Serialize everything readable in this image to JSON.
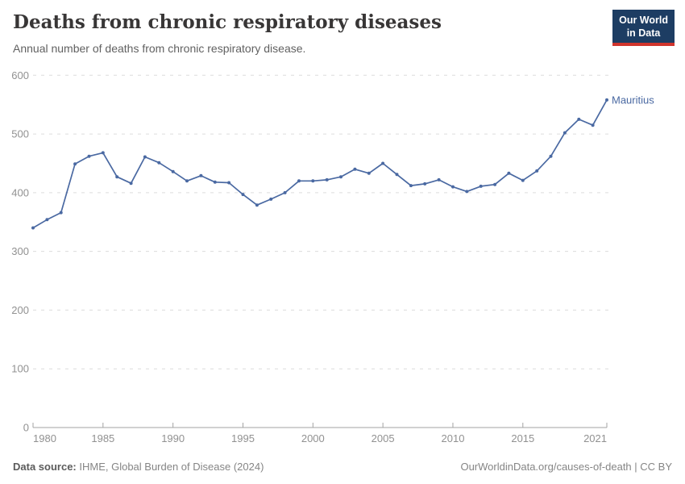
{
  "header": {
    "title": "Deaths from chronic respiratory diseases",
    "subtitle": "Annual number of deaths from chronic respiratory disease.",
    "logo": {
      "line1": "Our World",
      "line2": "in Data"
    }
  },
  "footer": {
    "source_label": "Data source:",
    "source_text": " IHME, Global Burden of Disease (2024)",
    "credit": "OurWorldinData.org/causes-of-death | CC BY"
  },
  "colors": {
    "line": "#4a69a2",
    "entity_label": "#4a69a2",
    "grid": "#dcdcdc",
    "axis": "#a3a3a3",
    "tick_label": "#919191",
    "title": "#383636",
    "subtitle": "#616161",
    "logo_bg": "#1d3d63",
    "logo_stripe": "#d0342c"
  },
  "chart_data": {
    "type": "line",
    "title": "Deaths from chronic respiratory diseases",
    "subtitle": "Annual number of deaths from chronic respiratory disease.",
    "entity_label": "Mauritius",
    "xlabel": "",
    "ylabel": "",
    "xlim": [
      1980,
      2021
    ],
    "ylim": [
      0,
      600
    ],
    "x_ticks": [
      1980,
      1985,
      1990,
      1995,
      2000,
      2005,
      2010,
      2015,
      2021
    ],
    "y_ticks": [
      0,
      100,
      200,
      300,
      400,
      500,
      600
    ],
    "grid": "horizontal-dashed",
    "legend_position": "end-of-line-label",
    "series": [
      {
        "name": "Mauritius",
        "x": [
          1980,
          1981,
          1982,
          1983,
          1984,
          1985,
          1986,
          1987,
          1988,
          1989,
          1990,
          1991,
          1992,
          1993,
          1994,
          1995,
          1996,
          1997,
          1998,
          1999,
          2000,
          2001,
          2002,
          2003,
          2004,
          2005,
          2006,
          2007,
          2008,
          2009,
          2010,
          2011,
          2012,
          2013,
          2014,
          2015,
          2016,
          2017,
          2018,
          2019,
          2020,
          2021
        ],
        "values": [
          340,
          354,
          366,
          449,
          462,
          468,
          427,
          416,
          461,
          451,
          436,
          420,
          429,
          418,
          417,
          397,
          379,
          389,
          400,
          420,
          420,
          422,
          427,
          440,
          433,
          450,
          431,
          412,
          415,
          422,
          410,
          402,
          411,
          414,
          433,
          421,
          437,
          462,
          502,
          525,
          515,
          558
        ]
      }
    ]
  }
}
